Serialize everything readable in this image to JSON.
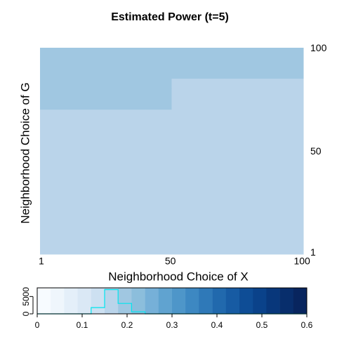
{
  "chart_data": {
    "type": "heatmap",
    "title": "Estimated Power (t=5)",
    "xlabel": "Neighborhood Choice of X",
    "ylabel": "Neighborhood Choice of G",
    "xlim": [
      0.5,
      100.5
    ],
    "ylim": [
      0.5,
      100.5
    ],
    "xticks": [
      1,
      50,
      100
    ],
    "yticks": [
      1,
      50,
      100
    ],
    "z": [
      [
        0.2,
        0.2,
        0.2,
        0.2,
        0.2,
        0.2,
        0.2,
        0.2,
        0.2,
        0.2
      ],
      [
        0.2,
        0.2,
        0.2,
        0.2,
        0.2,
        0.2,
        0.2,
        0.2,
        0.2,
        0.2
      ],
      [
        0.2,
        0.2,
        0.2,
        0.2,
        0.2,
        0.2,
        0.2,
        0.2,
        0.2,
        0.2
      ],
      [
        0.2,
        0.2,
        0.2,
        0.2,
        0.2,
        0.17,
        0.17,
        0.17,
        0.17,
        0.17
      ],
      [
        0.2,
        0.2,
        0.2,
        0.2,
        0.2,
        0.17,
        0.17,
        0.17,
        0.17,
        0.17
      ],
      [
        0.2,
        0.2,
        0.2,
        0.2,
        0.2,
        0.17,
        0.17,
        0.17,
        0.17,
        0.17
      ],
      [
        0.17,
        0.17,
        0.17,
        0.17,
        0.17,
        0.17,
        0.16,
        0.16,
        0.16,
        0.16
      ],
      [
        0.17,
        0.17,
        0.17,
        0.17,
        0.17,
        0.17,
        0.16,
        0.16,
        0.16,
        0.16
      ],
      [
        0.17,
        0.17,
        0.17,
        0.17,
        0.17,
        0.17,
        0.17,
        0.17,
        0.17,
        0.17
      ],
      [
        0.17,
        0.17,
        0.17,
        0.17,
        0.17,
        0.17,
        0.17,
        0.17,
        0.17,
        0.17
      ],
      [
        0.17,
        0.17,
        0.17,
        0.17,
        0.17,
        0.17,
        0.17,
        0.17,
        0.17,
        0.17
      ],
      [
        0.17,
        0.17,
        0.17,
        0.17,
        0.17,
        0.17,
        0.17,
        0.17,
        0.17,
        0.17
      ],
      [
        0.17,
        0.17,
        0.17,
        0.17,
        0.17,
        0.17,
        0.17,
        0.17,
        0.17,
        0.17
      ],
      [
        0.17,
        0.17,
        0.17,
        0.17,
        0.17,
        0.17,
        0.17,
        0.17,
        0.17,
        0.17
      ],
      [
        0.17,
        0.17,
        0.17,
        0.17,
        0.17,
        0.17,
        0.17,
        0.17,
        0.17,
        0.17
      ],
      [
        0.17,
        0.17,
        0.17,
        0.17,
        0.17,
        0.17,
        0.17,
        0.17,
        0.17,
        0.17
      ],
      [
        0.17,
        0.17,
        0.17,
        0.17,
        0.17,
        0.17,
        0.17,
        0.17,
        0.17,
        0.17
      ],
      [
        0.17,
        0.17,
        0.17,
        0.17,
        0.17,
        0.17,
        0.17,
        0.17,
        0.17,
        0.17
      ],
      [
        0.17,
        0.17,
        0.17,
        0.17,
        0.17,
        0.17,
        0.17,
        0.17,
        0.17,
        0.17
      ],
      [
        0.16,
        0.16,
        0.16,
        0.16,
        0.16,
        0.16,
        0.17,
        0.17,
        0.17,
        0.17
      ]
    ],
    "colorbar": {
      "bins": [
        0,
        0.03,
        0.06,
        0.09,
        0.12,
        0.15,
        0.18,
        0.21,
        0.24,
        0.27,
        0.3,
        0.33,
        0.36,
        0.39,
        0.42,
        0.45,
        0.48,
        0.51,
        0.54,
        0.57,
        0.6
      ],
      "colors": [
        "#f7fbff",
        "#eff6fc",
        "#e4eff9",
        "#dae8f5",
        "#cde0f1",
        "#bad4ea",
        "#a0c7e1",
        "#8cbedc",
        "#76b0d8",
        "#60a3d0",
        "#4e96c9",
        "#3d88c2",
        "#2f79b8",
        "#2169ad",
        "#175ba3",
        "#0e4d96",
        "#0a428a",
        "#08377b",
        "#082e6c",
        "#08255e"
      ],
      "xlim": [
        0,
        0.6
      ],
      "xticks": [
        0,
        0.1,
        0.2,
        0.3,
        0.4,
        0.5,
        0.6
      ],
      "counts": [
        0,
        0,
        0,
        0,
        1800,
        7000,
        3000,
        600,
        0,
        0,
        0,
        0,
        0,
        0,
        0,
        0,
        0,
        0,
        0,
        0
      ],
      "hist_color": "#00e5ee",
      "ylim": [
        0,
        7500
      ],
      "yticks": [
        0,
        5000
      ]
    }
  }
}
